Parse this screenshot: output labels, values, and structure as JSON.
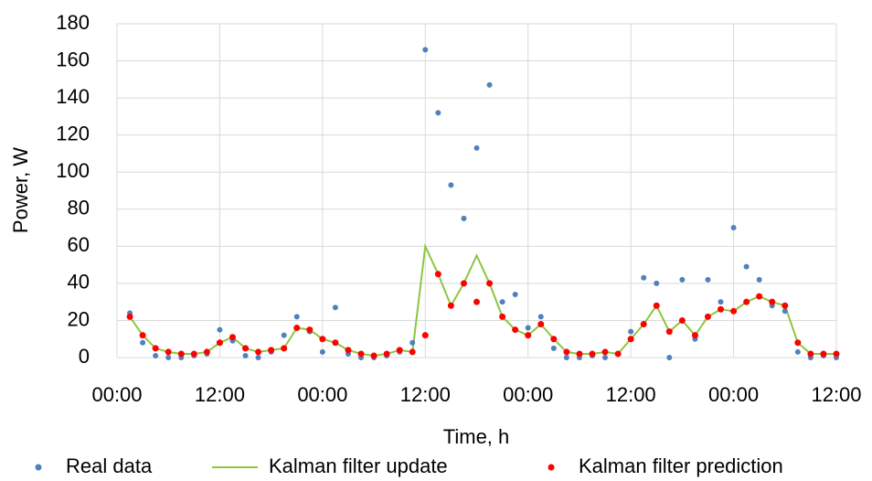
{
  "chart_data": {
    "type": "scatter",
    "xlabel": "Time, h",
    "ylabel": "Power, W",
    "xlim": [
      0,
      84
    ],
    "ylim": [
      0,
      180
    ],
    "xticks": [
      {
        "value": 0,
        "label": "00:00"
      },
      {
        "value": 12,
        "label": "12:00"
      },
      {
        "value": 24,
        "label": "00:00"
      },
      {
        "value": 36,
        "label": "12:00"
      },
      {
        "value": 48,
        "label": "00:00"
      },
      {
        "value": 60,
        "label": "12:00"
      },
      {
        "value": 72,
        "label": "00:00"
      },
      {
        "value": 84,
        "label": "12:00"
      }
    ],
    "yticks": [
      0,
      20,
      40,
      60,
      80,
      100,
      120,
      140,
      160,
      180
    ],
    "grid": true,
    "legend": "bottom",
    "x": [
      1.5,
      3,
      4.5,
      6,
      7.5,
      9,
      10.5,
      12,
      13.5,
      15,
      16.5,
      18,
      19.5,
      21,
      22.5,
      24,
      25.5,
      27,
      28.5,
      30,
      31.5,
      33,
      34.5,
      36,
      37.5,
      39,
      40.5,
      42,
      43.5,
      45,
      46.5,
      48,
      49.5,
      51,
      52.5,
      54,
      55.5,
      57,
      58.5,
      60,
      61.5,
      63,
      64.5,
      66,
      67.5,
      69,
      70.5,
      72,
      73.5,
      75,
      76.5,
      78,
      79.5,
      81,
      82.5,
      84
    ],
    "series": [
      {
        "name": "Real data",
        "color": "#4f81bd",
        "kind": "scatter",
        "values": [
          24,
          8,
          1,
          0,
          0,
          1,
          2,
          15,
          9,
          1,
          0,
          3,
          12,
          22,
          14,
          3,
          27,
          2,
          0,
          0,
          1,
          3,
          8,
          166,
          132,
          93,
          75,
          113,
          147,
          30,
          34,
          16,
          22,
          5,
          0,
          0,
          1,
          0,
          2,
          14,
          43,
          40,
          0,
          42,
          10,
          42,
          30,
          70,
          49,
          42,
          28,
          25,
          3,
          0,
          1,
          0
        ]
      },
      {
        "name": "Kalman filter update",
        "color": "#8dc63f",
        "kind": "line",
        "values": [
          22,
          12,
          5,
          3,
          2,
          2,
          3,
          8,
          11,
          5,
          3,
          4,
          5,
          16,
          15,
          10,
          8,
          4,
          2,
          1,
          2,
          4,
          3,
          60,
          45,
          28,
          40,
          55,
          40,
          22,
          15,
          12,
          18,
          10,
          3,
          2,
          2,
          3,
          2,
          10,
          18,
          28,
          14,
          20,
          12,
          22,
          26,
          25,
          30,
          33,
          30,
          28,
          8,
          2,
          2,
          2
        ]
      },
      {
        "name": "Kalman filter prediction",
        "color": "#ff0000",
        "kind": "scatter",
        "values": [
          22,
          12,
          5,
          3,
          2,
          2,
          3,
          8,
          11,
          5,
          3,
          4,
          5,
          16,
          15,
          10,
          8,
          4,
          2,
          1,
          2,
          4,
          3,
          12,
          45,
          28,
          40,
          30,
          40,
          22,
          15,
          12,
          18,
          10,
          3,
          2,
          2,
          3,
          2,
          10,
          18,
          28,
          14,
          20,
          12,
          22,
          26,
          25,
          30,
          33,
          30,
          28,
          8,
          2,
          2,
          2
        ]
      }
    ]
  }
}
